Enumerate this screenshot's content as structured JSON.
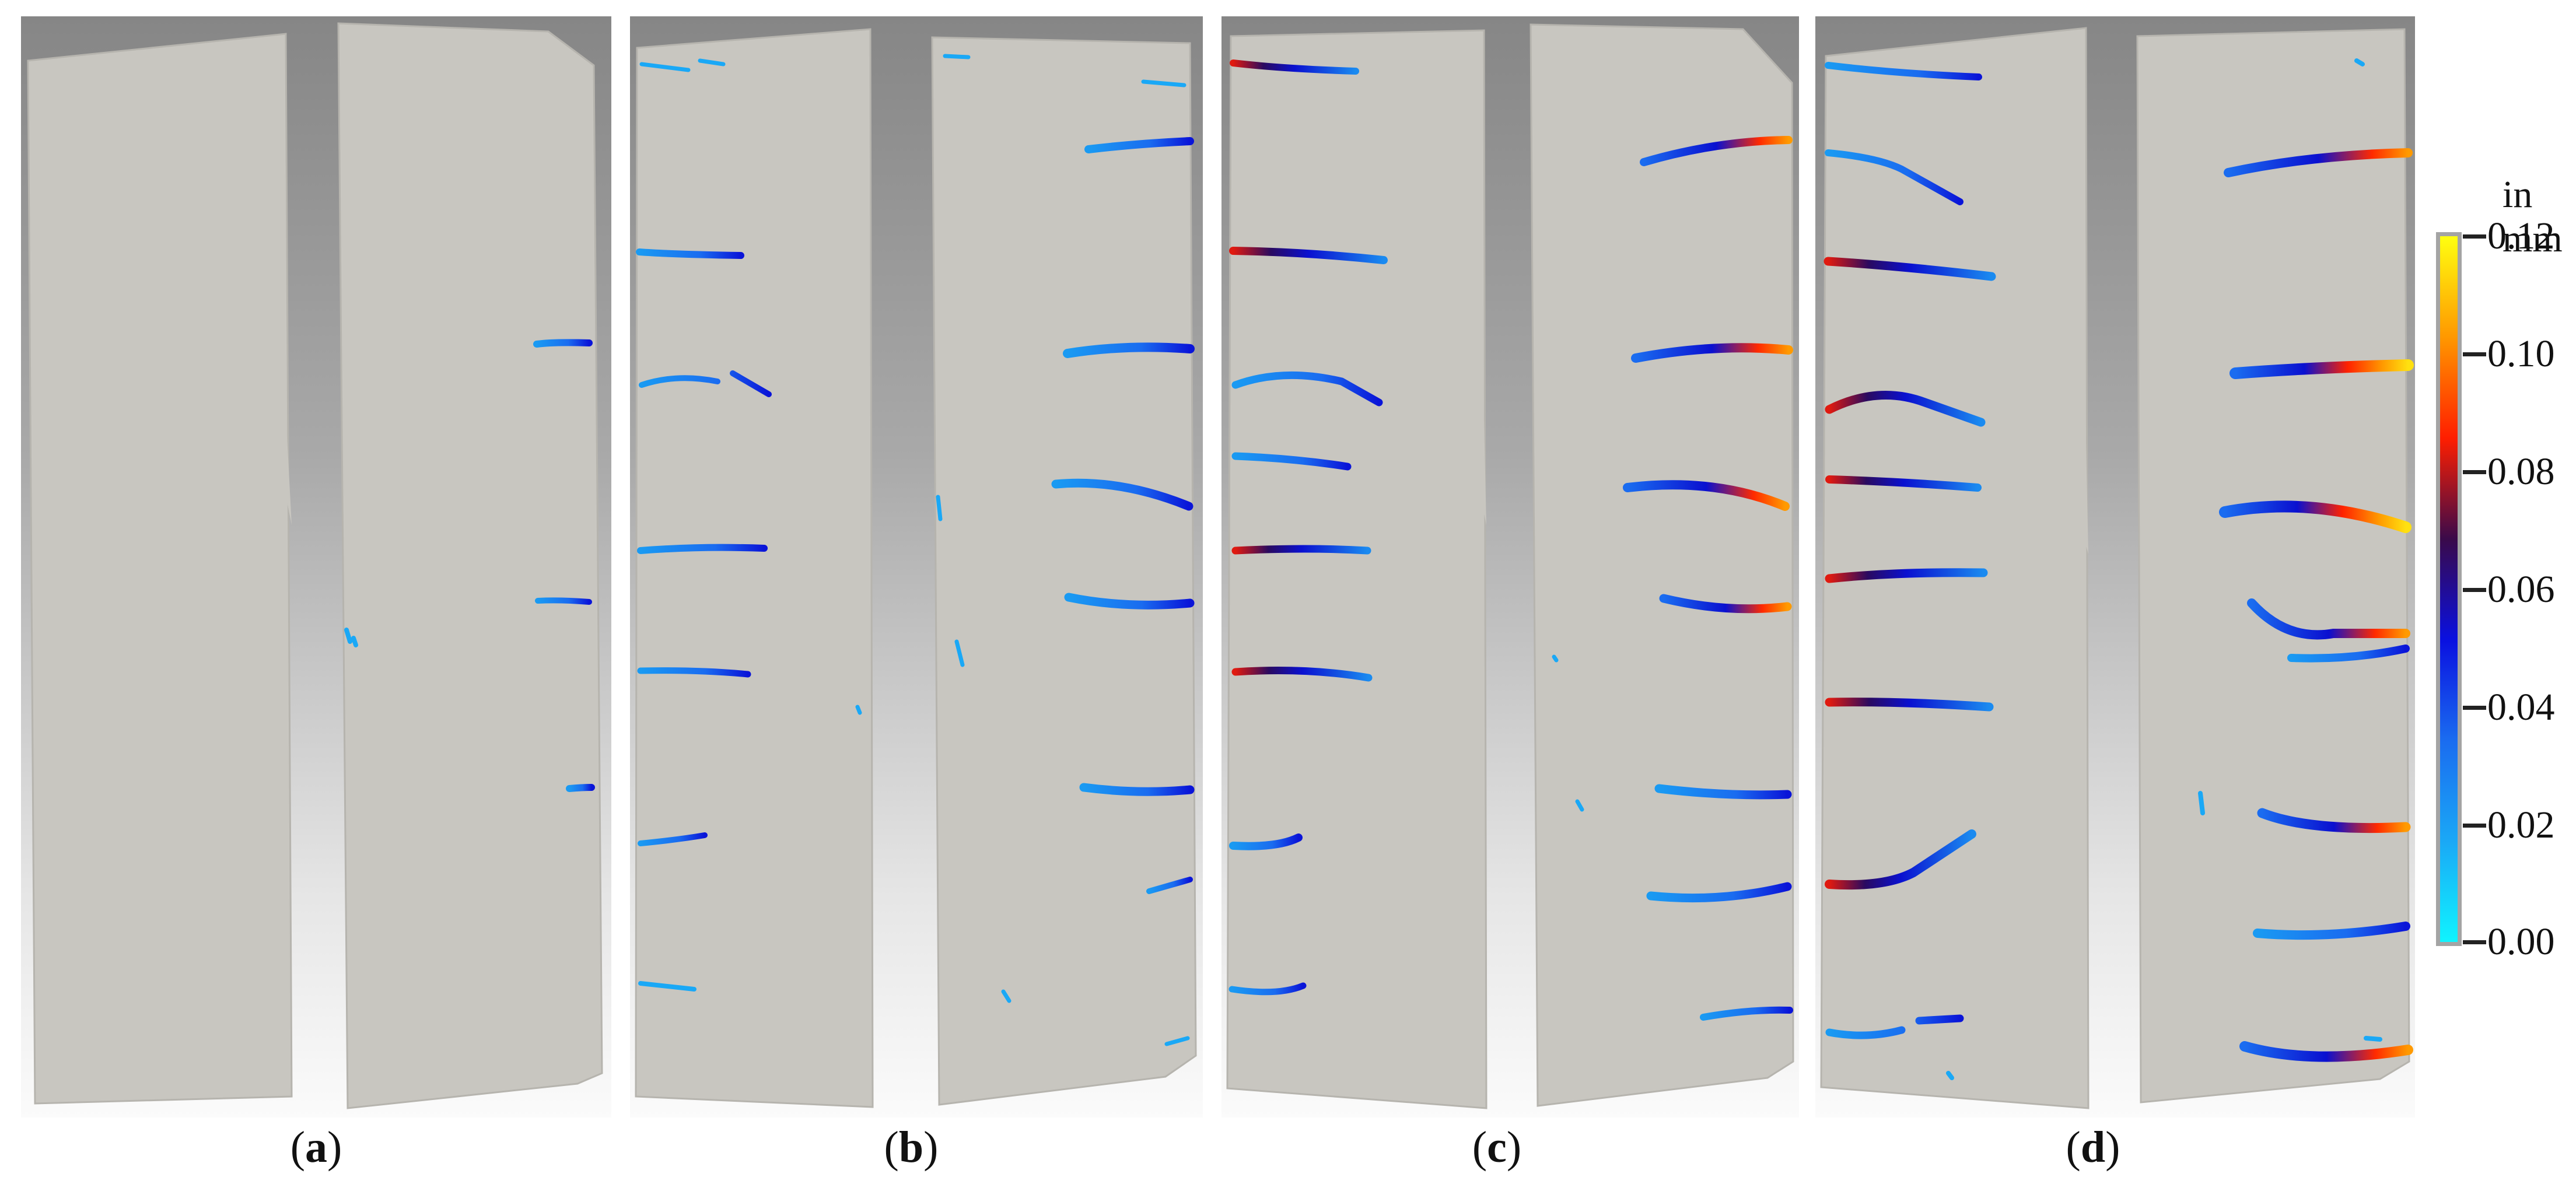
{
  "panels": [
    {
      "label": "a"
    },
    {
      "label": "b"
    },
    {
      "label": "c"
    },
    {
      "label": "d"
    }
  ],
  "colorbar": {
    "unit": "in mm",
    "ticks": [
      "0.12",
      "0.10",
      "0.08",
      "0.06",
      "0.04",
      "0.02",
      "0.00"
    ],
    "min": 0.0,
    "max": 0.12,
    "colors": [
      "#10f4ff",
      "#1aa8f6",
      "#1a6cf0",
      "#0a10e0",
      "#3a0a4a",
      "#ff1e00",
      "#ff9800",
      "#ffff10"
    ]
  },
  "colors": {
    "specimen": "#c8c6c0",
    "specimen_edge": "#b6b4ae"
  }
}
